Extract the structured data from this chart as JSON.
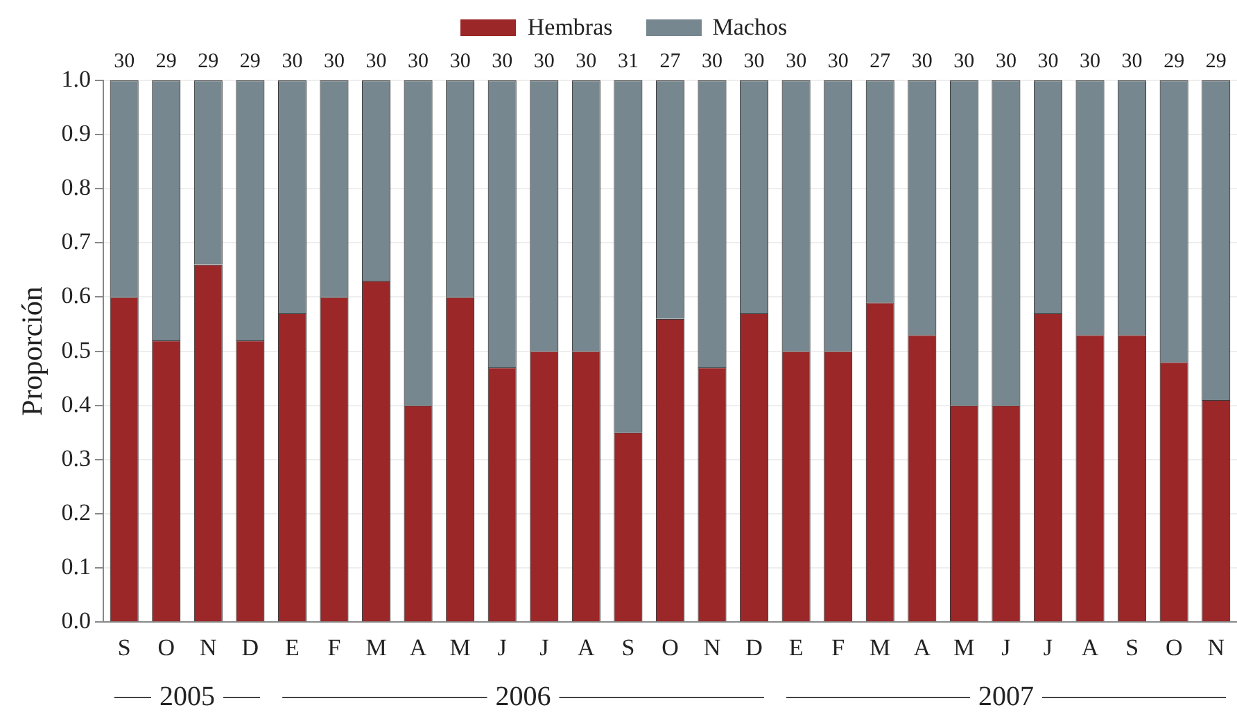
{
  "chart_data": {
    "type": "bar",
    "stacked": true,
    "ylabel": "Proporción",
    "categories": [
      "S",
      "O",
      "N",
      "D",
      "E",
      "F",
      "M",
      "A",
      "M",
      "J",
      "J",
      "A",
      "S",
      "O",
      "N",
      "D",
      "E",
      "F",
      "M",
      "A",
      "M",
      "J",
      "J",
      "A",
      "S",
      "O",
      "N"
    ],
    "series": [
      {
        "name": "Hembras",
        "color": "#9b2728",
        "values": [
          0.6,
          0.52,
          0.66,
          0.52,
          0.57,
          0.6,
          0.63,
          0.4,
          0.6,
          0.47,
          0.5,
          0.5,
          0.35,
          0.56,
          0.47,
          0.57,
          0.5,
          0.5,
          0.59,
          0.53,
          0.4,
          0.4,
          0.57,
          0.53,
          0.53,
          0.48,
          0.41
        ]
      },
      {
        "name": "Machos",
        "color": "#77878f",
        "values": [
          0.4,
          0.48,
          0.34,
          0.48,
          0.43,
          0.4,
          0.37,
          0.6,
          0.4,
          0.53,
          0.5,
          0.5,
          0.65,
          0.44,
          0.53,
          0.43,
          0.5,
          0.5,
          0.41,
          0.47,
          0.6,
          0.6,
          0.43,
          0.47,
          0.47,
          0.52,
          0.59
        ]
      }
    ],
    "annotations": [
      "30",
      "29",
      "29",
      "29",
      "30",
      "30",
      "30",
      "30",
      "30",
      "30",
      "30",
      "30",
      "31",
      "27",
      "30",
      "30",
      "30",
      "30",
      "27",
      "30",
      "30",
      "30",
      "30",
      "30",
      "30",
      "29",
      "29",
      "2005",
      "2006",
      "2007"
    ],
    "ylim": [
      0,
      1
    ],
    "yticks": [
      {
        "value": 0,
        "label": "0.0"
      },
      {
        "value": 0.1,
        "label": "0.1"
      },
      {
        "value": 0.2,
        "label": "0.2"
      },
      {
        "value": 0.3,
        "label": "0.3"
      },
      {
        "value": 0.4,
        "label": "0.4"
      },
      {
        "value": 0.5,
        "label": "0.5"
      },
      {
        "value": 0.6,
        "label": "0.6"
      },
      {
        "value": 0.7,
        "label": "0.7"
      },
      {
        "value": 0.8,
        "label": "0.8"
      },
      {
        "value": 0.9,
        "label": "0.9"
      },
      {
        "value": 1,
        "label": "1.0"
      }
    ],
    "grid": "y",
    "legend": "top"
  }
}
